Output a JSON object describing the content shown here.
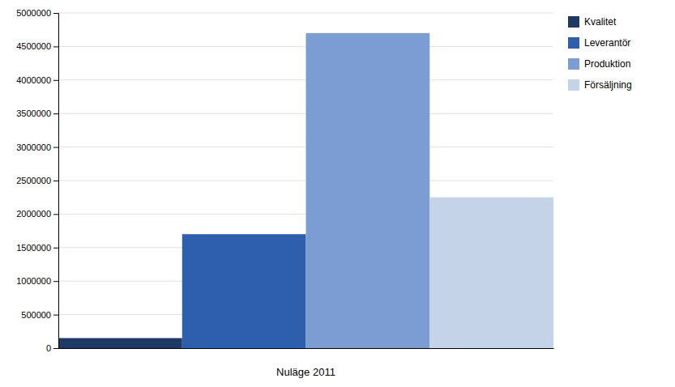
{
  "chart_data": {
    "type": "bar",
    "categories": [
      "Kvalitet",
      "Leverantör",
      "Produktion",
      "Försäljning"
    ],
    "values": [
      150000,
      1700000,
      4700000,
      2250000
    ],
    "colors": [
      "#1F3864",
      "#2E5FAC",
      "#7B9DD1",
      "#C5D3E8"
    ],
    "xlabel": "Nuläge 2011",
    "ylim": [
      0,
      5000000
    ],
    "yticks": [
      0,
      500000,
      1000000,
      1500000,
      2000000,
      2500000,
      3000000,
      3500000,
      4000000,
      4500000,
      5000000
    ],
    "grid": true,
    "legend": "right",
    "tick_labels": "y"
  }
}
